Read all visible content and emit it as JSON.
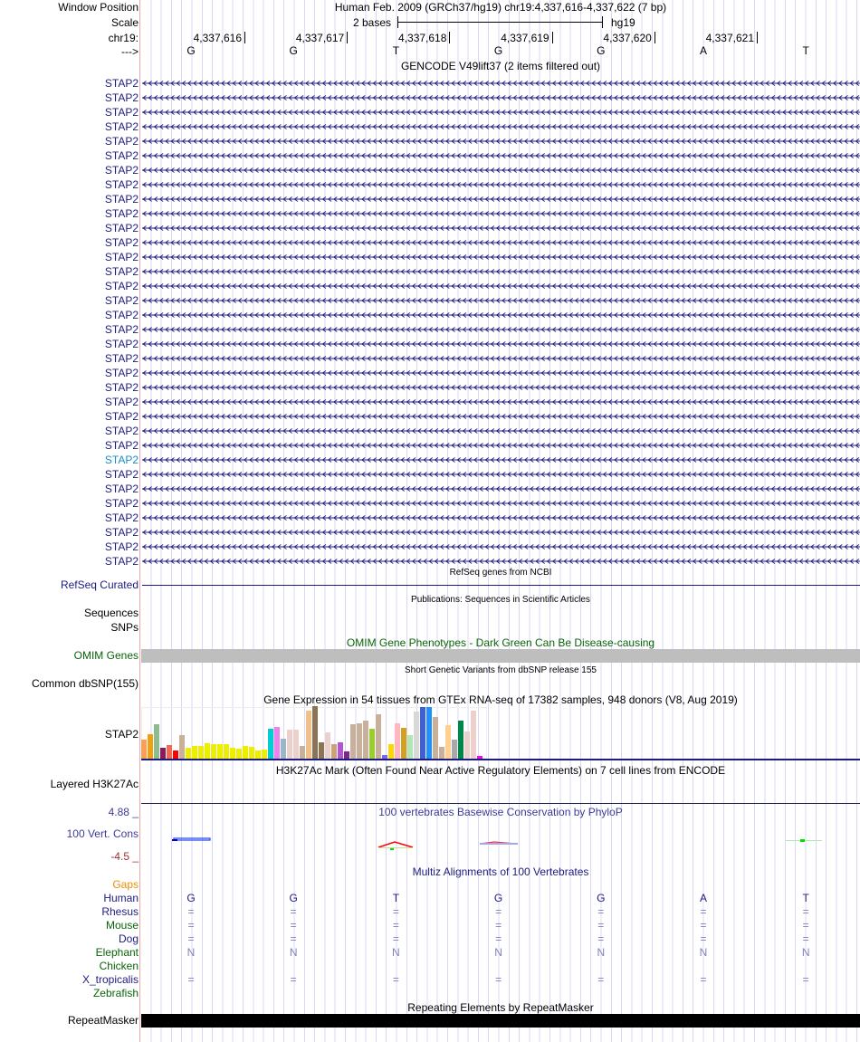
{
  "header": {
    "window_position_label": "Window Position",
    "window_position": "Human Feb. 2009 (GRCh37/hg19)   chr19:4,337,616-4,337,622 (7 bp)",
    "scale_label": "Scale",
    "scale_text": "2 bases",
    "scale_assembly": "hg19",
    "chrom_label": "chr19:",
    "strand_label": "--->",
    "positions": [
      "4,337,616",
      "4,337,617",
      "4,337,618",
      "4,337,619",
      "4,337,620",
      "4,337,621"
    ],
    "bases": [
      "G",
      "G",
      "T",
      "G",
      "G",
      "A",
      "T"
    ]
  },
  "gencode": {
    "title": "GENCODE V49lift37 (2 items filtered out)",
    "highlight_index": 26,
    "rows": [
      "STAP2",
      "STAP2",
      "STAP2",
      "STAP2",
      "STAP2",
      "STAP2",
      "STAP2",
      "STAP2",
      "STAP2",
      "STAP2",
      "STAP2",
      "STAP2",
      "STAP2",
      "STAP2",
      "STAP2",
      "STAP2",
      "STAP2",
      "STAP2",
      "STAP2",
      "STAP2",
      "STAP2",
      "STAP2",
      "STAP2",
      "STAP2",
      "STAP2",
      "STAP2",
      "STAP2",
      "STAP2",
      "STAP2",
      "STAP2",
      "STAP2",
      "STAP2",
      "STAP2",
      "STAP2"
    ]
  },
  "refseq": {
    "title": "RefSeq genes from NCBI",
    "label": "RefSeq Curated"
  },
  "publications": {
    "title": "Publications: Sequences in Scientific Articles",
    "label_line1": "Sequences",
    "label_line2": "SNPs"
  },
  "omim": {
    "title": "OMIM Gene Phenotypes - Dark Green Can Be Disease-causing",
    "label": "OMIM Genes"
  },
  "dbsnp": {
    "title": "Short Genetic Variants from dbSNP release 155",
    "label": "Common dbSNP(155)"
  },
  "gtex": {
    "title": "Gene Expression in 54 tissues from GTEx RNA-seq of 17382 samples, 948 donors (V8, Aug 2019)",
    "label": "STAP2",
    "values": [
      21,
      27,
      38,
      12,
      15,
      9,
      26,
      12,
      14,
      14,
      17,
      16,
      16,
      16,
      12,
      11,
      14,
      13,
      9,
      10,
      33,
      35,
      22,
      32,
      32,
      14,
      53,
      58,
      18,
      29,
      16,
      18,
      8,
      38,
      39,
      42,
      33,
      49,
      4,
      16,
      39,
      34,
      26,
      52,
      57,
      57,
      46,
      13,
      37,
      21,
      42,
      30,
      53,
      3
    ],
    "colors": [
      "#f7a05a",
      "#f0a010",
      "#8fbc8f",
      "#8b1a5a",
      "#ee6a50",
      "#ff0000",
      "#c8b09a",
      "#eeee00",
      "#eeee00",
      "#eeee00",
      "#eeee00",
      "#eeee00",
      "#eeee00",
      "#eeee00",
      "#eeee00",
      "#eeee00",
      "#eeee00",
      "#eeee00",
      "#eeee00",
      "#eeee00",
      "#00ced1",
      "#ee82ee",
      "#9ab7c8",
      "#ecd0cc",
      "#ecd0cc",
      "#c8b09a",
      "#f0c08a",
      "#8b7355",
      "#8b7355",
      "#ecd0cc",
      "#cda27a",
      "#b455d2",
      "#7a2a8a",
      "#c8b09a",
      "#c8b09a",
      "#c8b09a",
      "#9acd32",
      "#c8b09a",
      "#7b68ee",
      "#ffd700",
      "#ffb6c1",
      "#d4a020",
      "#b4e6b4",
      "#d8d8d8",
      "#4060d0",
      "#1e90ff",
      "#c8b09a",
      "#c8b09a",
      "#ffd090",
      "#a8a8a8",
      "#00864a",
      "#ecd0cc",
      "#ecd0cc",
      "#ff00ff"
    ]
  },
  "h3k27ac": {
    "title": "H3K27Ac Mark (Often Found Near Active Regulatory Elements) on 7 cell lines from ENCODE",
    "label": "Layered H3K27Ac"
  },
  "phylop": {
    "title": "100 vertebrates Basewise Conservation by PhyloP",
    "label": "100 Vert. Cons",
    "max": "4.88 _",
    "min": "-4.5 _"
  },
  "multiz": {
    "title": "Multiz Alignments of 100 Vertebrates",
    "species": [
      {
        "name": "Gaps",
        "color": "#f08c00",
        "cells": [
          "",
          "",
          "",
          "",
          "",
          "",
          ""
        ]
      },
      {
        "name": "Human",
        "color": "#1c1c80",
        "cells": [
          "G",
          "G",
          "T",
          "G",
          "G",
          "A",
          "T"
        ]
      },
      {
        "name": "Rhesus",
        "color": "#1c1c80",
        "cells": [
          "=",
          "=",
          "=",
          "=",
          "=",
          "=",
          "="
        ]
      },
      {
        "name": "Mouse",
        "color": "#0a640a",
        "cells": [
          "=",
          "=",
          "=",
          "=",
          "=",
          "=",
          "="
        ]
      },
      {
        "name": "Dog",
        "color": "#1c1c80",
        "cells": [
          "=",
          "=",
          "=",
          "=",
          "=",
          "=",
          "="
        ]
      },
      {
        "name": "Elephant",
        "color": "#0a640a",
        "cells": [
          "N",
          "N",
          "N",
          "N",
          "N",
          "N",
          "N"
        ]
      },
      {
        "name": "Chicken",
        "color": "#0a640a",
        "cells": [
          "",
          "",
          "",
          "",
          "",
          "",
          ""
        ]
      },
      {
        "name": "X_tropicalis",
        "color": "#1c1c80",
        "cells": [
          "=",
          "=",
          "=",
          "=",
          "=",
          "=",
          "="
        ]
      },
      {
        "name": "Zebrafish",
        "color": "#0a640a",
        "cells": [
          "",
          "",
          "",
          "",
          "",
          "",
          ""
        ]
      }
    ]
  },
  "repeatmasker": {
    "title": "Repeating Elements by RepeatMasker",
    "label": "RepeatMasker"
  }
}
